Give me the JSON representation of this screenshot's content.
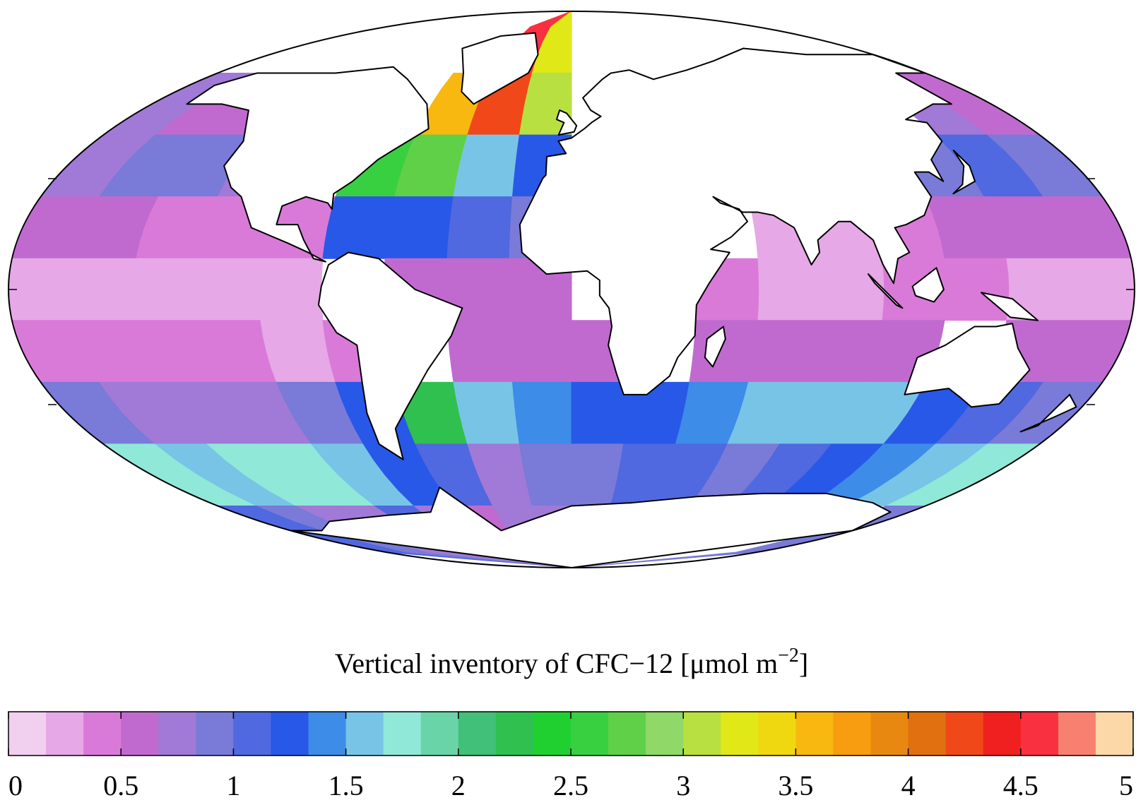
{
  "chart_data": {
    "type": "map",
    "projection": "mollweide",
    "title": "Vertical inventory of CFC−12 [μmol m",
    "title_sup": "−2",
    "title_end": "]",
    "field": {
      "lat_step": 20,
      "lon_step": 20,
      "values": [
        [
          null,
          null,
          null,
          null,
          null,
          null,
          null,
          4.6,
          3.2,
          null,
          null,
          null,
          null,
          null,
          null,
          null,
          null,
          null
        ],
        [
          0.7,
          0.6,
          0.6,
          0.6,
          null,
          null,
          3.5,
          4.2,
          3.0,
          null,
          null,
          null,
          null,
          null,
          null,
          null,
          0.7,
          0.6
        ],
        [
          0.8,
          0.9,
          0.9,
          0.8,
          null,
          2.5,
          2.7,
          1.6,
          1.3,
          null,
          null,
          null,
          null,
          null,
          null,
          0.9,
          1.0,
          0.9
        ],
        [
          0.5,
          0.5,
          0.4,
          0.4,
          0.4,
          1.2,
          1.2,
          1.0,
          0.9,
          null,
          null,
          null,
          0.3,
          0.3,
          0.4,
          0.5,
          0.6,
          0.5
        ],
        [
          0.2,
          0.2,
          0.2,
          0.3,
          0.3,
          null,
          0.5,
          0.6,
          0.5,
          null,
          null,
          0.4,
          0.3,
          0.3,
          0.4,
          0.4,
          0.3,
          0.3
        ],
        [
          0.4,
          0.4,
          0.4,
          0.4,
          0.3,
          0.4,
          null,
          0.6,
          0.6,
          0.5,
          null,
          0.5,
          0.5,
          0.5,
          0.6,
          null,
          0.6,
          0.5
        ],
        [
          0.9,
          0.8,
          0.8,
          0.8,
          0.9,
          1.2,
          2.3,
          1.6,
          1.4,
          1.2,
          1.3,
          1.4,
          1.5,
          1.6,
          1.6,
          1.3,
          1.0,
          0.9
        ],
        [
          1.7,
          1.6,
          1.8,
          1.8,
          1.5,
          1.2,
          1.0,
          0.8,
          0.9,
          0.9,
          1.0,
          1.1,
          0.9,
          1.1,
          1.2,
          1.4,
          1.6,
          1.7
        ],
        [
          1.0,
          0.9,
          0.8,
          0.8,
          1.0,
          0.8,
          0.5,
          0.7,
          0.8,
          null,
          null,
          null,
          null,
          null,
          null,
          null,
          null,
          0.9
        ]
      ]
    },
    "colorbar": {
      "range": [
        0,
        5
      ],
      "ticks": [
        0,
        0.5,
        1,
        1.5,
        2,
        2.5,
        3,
        3.5,
        4,
        4.5,
        5
      ],
      "colors": [
        "#f0d0ee",
        "#e6a8e6",
        "#d97ad9",
        "#c06ad0",
        "#a07ad6",
        "#7a7ad8",
        "#5068e0",
        "#2858e8",
        "#3c8ce8",
        "#78c4e6",
        "#90e8d8",
        "#68d4a8",
        "#40c078",
        "#30c050",
        "#20d030",
        "#38d040",
        "#60d048",
        "#90d868",
        "#b8e040",
        "#e0e818",
        "#f0d810",
        "#f8b810",
        "#f89c10",
        "#e88810",
        "#e07010",
        "#f04818",
        "#f02020",
        "#f83040",
        "#f88070",
        "#fcd8a8"
      ]
    }
  }
}
